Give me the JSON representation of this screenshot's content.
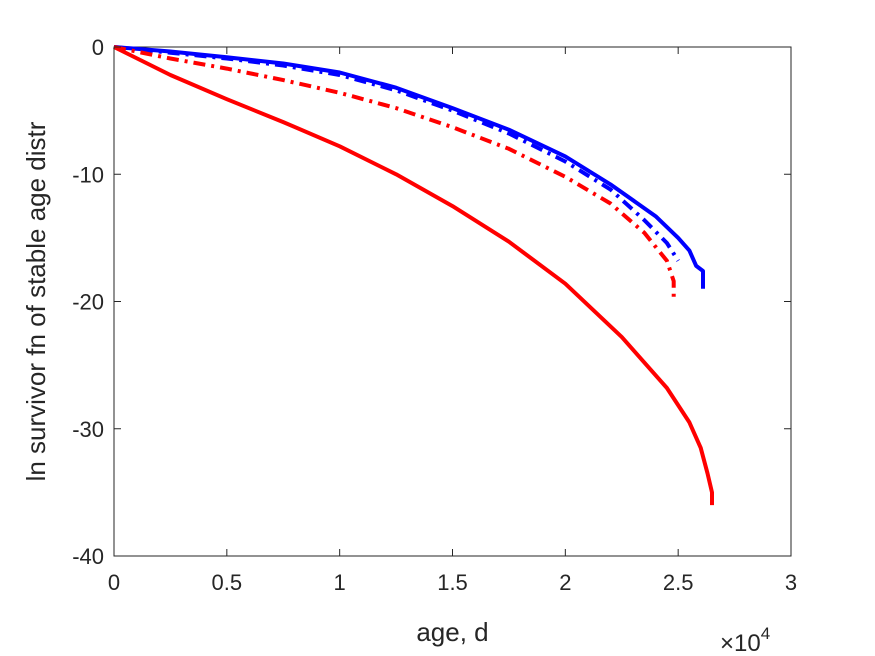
{
  "chart_data": {
    "type": "line",
    "title": "",
    "xlabel": "age, d",
    "ylabel": "ln survivor fn of stable age distr",
    "x_multiplier_label": {
      "base": "×10",
      "exponent": "4"
    },
    "xlim": [
      0,
      3
    ],
    "ylim": [
      -40,
      0
    ],
    "xticks": [
      0,
      0.5,
      1,
      1.5,
      2,
      2.5,
      3
    ],
    "xtick_labels": [
      "0",
      "0.5",
      "1",
      "1.5",
      "2",
      "2.5",
      "3"
    ],
    "yticks": [
      0,
      -10,
      -20,
      -30,
      -40
    ],
    "ytick_labels": [
      "0",
      "-10",
      "-20",
      "-30",
      "-40"
    ],
    "grid": false,
    "series": [
      {
        "color": "#0000ff",
        "style": "solid",
        "x": [
          0,
          0.25,
          0.5,
          0.75,
          1.0,
          1.25,
          1.5,
          1.75,
          2.0,
          2.2,
          2.4,
          2.5,
          2.55,
          2.58,
          2.61,
          2.61
        ],
        "y": [
          0,
          -0.35,
          -0.8,
          -1.3,
          -2.0,
          -3.2,
          -4.8,
          -6.5,
          -8.6,
          -10.8,
          -13.3,
          -15.0,
          -16.0,
          -17.2,
          -17.6,
          -19.0
        ]
      },
      {
        "color": "#0000ff",
        "style": "dashdot",
        "x": [
          0,
          0.25,
          0.5,
          0.75,
          1.0,
          1.25,
          1.5,
          1.75,
          2.0,
          2.2,
          2.35,
          2.45,
          2.5
        ],
        "y": [
          0,
          -0.45,
          -0.9,
          -1.45,
          -2.2,
          -3.4,
          -5.0,
          -6.8,
          -9.0,
          -11.2,
          -13.6,
          -15.4,
          -16.8
        ]
      },
      {
        "color": "#ff0000",
        "style": "dashdot",
        "x": [
          0,
          0.25,
          0.5,
          0.75,
          1.0,
          1.25,
          1.5,
          1.75,
          2.0,
          2.2,
          2.35,
          2.45,
          2.48,
          2.48
        ],
        "y": [
          0,
          -0.9,
          -1.7,
          -2.6,
          -3.6,
          -4.8,
          -6.3,
          -8.0,
          -10.2,
          -12.3,
          -14.6,
          -16.8,
          -18.4,
          -20.0
        ]
      },
      {
        "color": "#ff0000",
        "style": "solid",
        "x": [
          0,
          0.25,
          0.5,
          0.75,
          1.0,
          1.25,
          1.5,
          1.75,
          2.0,
          2.25,
          2.45,
          2.55,
          2.6,
          2.63,
          2.65,
          2.65
        ],
        "y": [
          0,
          -2.2,
          -4.1,
          -5.9,
          -7.8,
          -10.0,
          -12.5,
          -15.3,
          -18.6,
          -22.8,
          -26.8,
          -29.5,
          -31.5,
          -33.5,
          -35.0,
          -36.0
        ]
      }
    ]
  }
}
